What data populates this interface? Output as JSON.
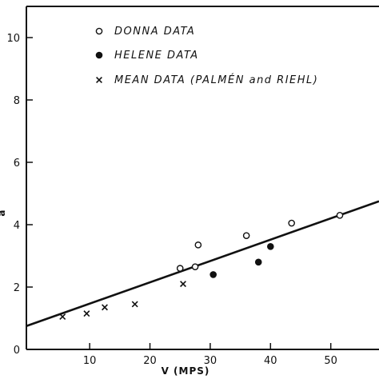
{
  "chart_data": {
    "type": "scatter",
    "xlabel": "V (MPS)",
    "ylabel": "a",
    "xlim": [
      -0.5,
      58
    ],
    "ylim": [
      0,
      11
    ],
    "x_ticks": [
      {
        "value": 10,
        "label": "10"
      },
      {
        "value": 20,
        "label": "20"
      },
      {
        "value": 30,
        "label": "30"
      },
      {
        "value": 40,
        "label": "40"
      },
      {
        "value": 50,
        "label": "50"
      }
    ],
    "y_ticks": [
      {
        "value": 0,
        "label": "0"
      },
      {
        "value": 2,
        "label": "2"
      },
      {
        "value": 4,
        "label": "4"
      },
      {
        "value": 6,
        "label": "6"
      },
      {
        "value": 8,
        "label": "8"
      },
      {
        "value": 10,
        "label": "10"
      }
    ],
    "grid": false,
    "legend_position": "top-center",
    "series": [
      {
        "name": "DONNA DATA",
        "marker": "open-circle",
        "x": [
          25,
          27.5,
          28,
          36,
          43.5,
          51.5
        ],
        "y": [
          2.6,
          2.65,
          3.35,
          3.65,
          4.05,
          4.3
        ]
      },
      {
        "name": "HELENE DATA",
        "marker": "filled-circle",
        "x": [
          30.5,
          38,
          40
        ],
        "y": [
          2.4,
          2.8,
          3.3
        ]
      },
      {
        "name": "MEAN DATA (PALMÉN and RIEHL)",
        "marker": "x",
        "x": [
          5.5,
          9.5,
          12.5,
          17.5,
          25.5
        ],
        "y": [
          1.05,
          1.15,
          1.35,
          1.45,
          2.1
        ]
      }
    ],
    "fit_line": {
      "x": [
        -0.5,
        58
      ],
      "y": [
        0.75,
        4.75
      ]
    }
  }
}
